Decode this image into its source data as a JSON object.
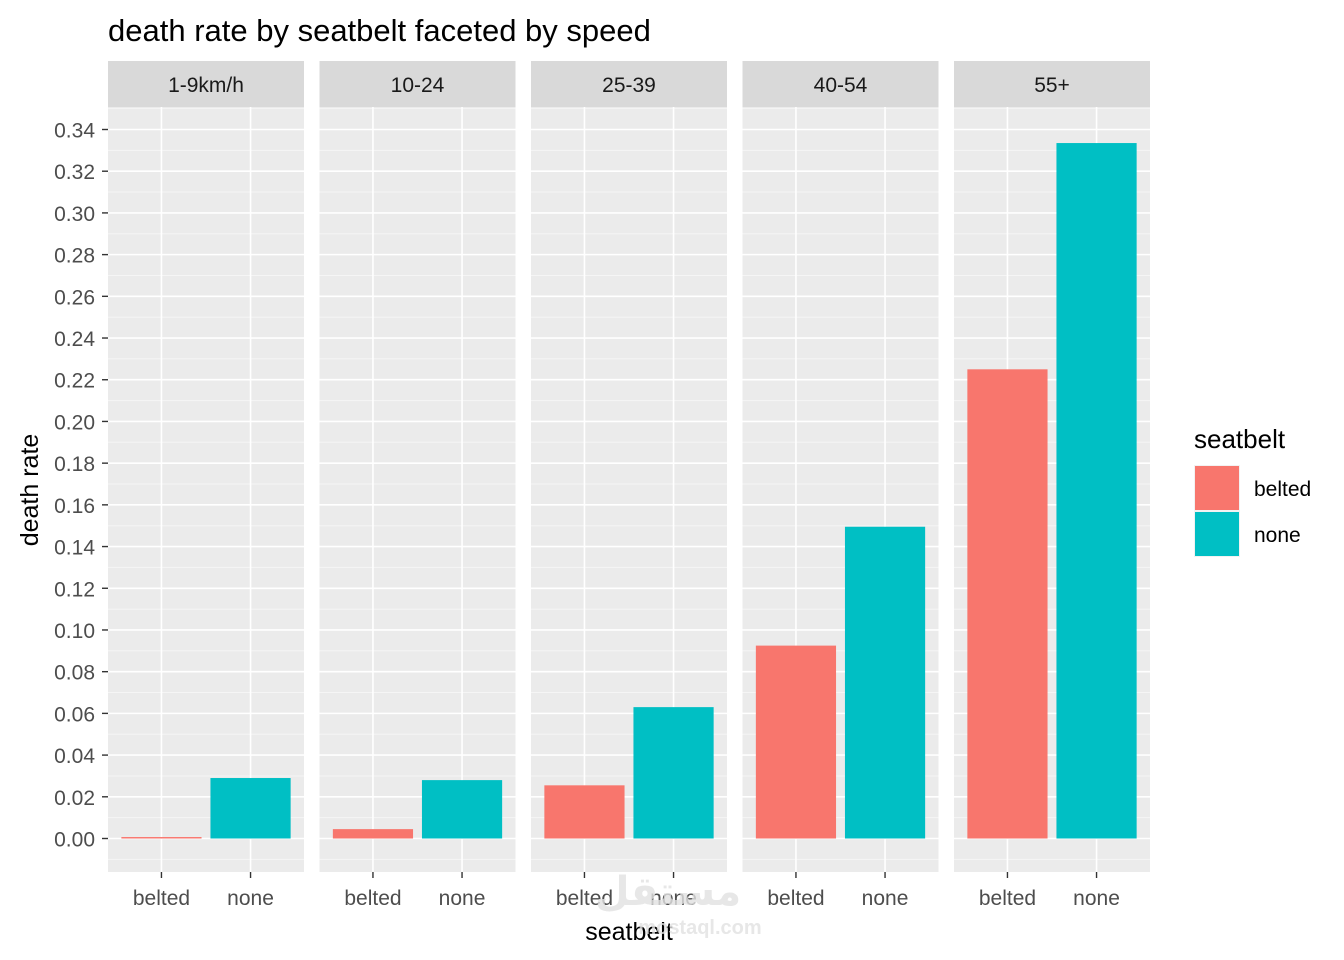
{
  "chart_data": {
    "type": "bar",
    "title": "death rate by seatbelt faceted by speed",
    "xlabel": "seatbelt",
    "ylabel": "death rate",
    "ylim": [
      -0.016,
      0.34
    ],
    "yticks": [
      "0.00",
      "0.02",
      "0.04",
      "0.06",
      "0.08",
      "0.10",
      "0.12",
      "0.14",
      "0.16",
      "0.18",
      "0.20",
      "0.22",
      "0.24",
      "0.26",
      "0.28",
      "0.30",
      "0.32",
      "0.34"
    ],
    "grid": true,
    "legend": {
      "title": "seatbelt",
      "placement": "right",
      "entries": [
        {
          "label": "belted",
          "color": "#F8766D"
        },
        {
          "label": "none",
          "color": "#00BFC4"
        }
      ]
    },
    "categories": [
      "belted",
      "none"
    ],
    "facets": [
      {
        "label": "1-9km/h",
        "values": [
          0.0007,
          0.029
        ]
      },
      {
        "label": "10-24",
        "values": [
          0.0045,
          0.028
        ]
      },
      {
        "label": "25-39",
        "values": [
          0.0255,
          0.063
        ]
      },
      {
        "label": "40-54",
        "values": [
          0.0925,
          0.1495
        ]
      },
      {
        "label": "55+",
        "values": [
          0.225,
          0.3335
        ]
      }
    ]
  },
  "watermark": {
    "text": "مستقل",
    "sub": "mostaql.com"
  }
}
